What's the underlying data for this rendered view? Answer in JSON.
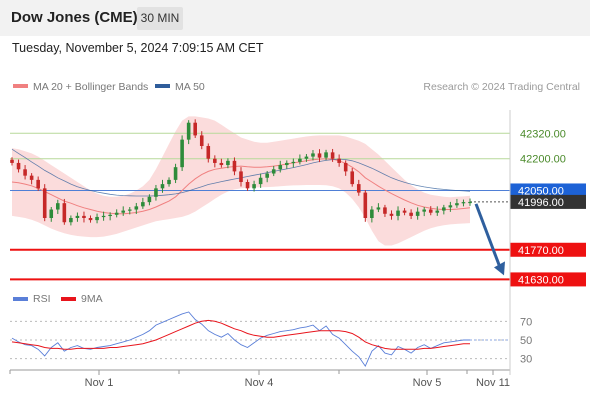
{
  "header": {
    "title": "Dow Jones (CME)",
    "interval": "30 MIN",
    "timestamp": "Tuesday, November 5, 2024 7:09:15 AM CET"
  },
  "colors": {
    "bollinger": "#f08080",
    "band_fill": "#fbdcdc",
    "ma50": "#2f5d9b",
    "candle_up": "#2e8b3a",
    "candle_down": "#c62828",
    "level_red": "#ee1111",
    "level_green": "#b7d99a",
    "current_line": "#4f7fd6",
    "current_badge": "#1d62d6",
    "last_badge": "#333333",
    "arrow": "#2f5f9e",
    "rsi": "#5a7fd8",
    "rsi_ma": "#e8141c"
  },
  "icons": {
    "arrow": "down-arrow-icon"
  },
  "chart_data": [
    {
      "type": "candlestick",
      "legend": [
        {
          "name": "MA 20 + Bollinger Bands",
          "color": "#f08080"
        },
        {
          "name": "MA 50",
          "color": "#2f5d9b"
        }
      ],
      "watermark": "Research © 2024 Trading Central",
      "ylim": [
        41580,
        42430
      ],
      "x_tick_labels": [
        "Nov 1",
        "Nov 4",
        "Nov 5",
        "Nov 11"
      ],
      "levels": [
        {
          "value": 42320.0,
          "label": "42320.00",
          "color": "#b7d99a",
          "kind": "resistance"
        },
        {
          "value": 42200.0,
          "label": "42200.00",
          "color": "#b7d99a",
          "kind": "resistance"
        },
        {
          "value": 42050.0,
          "label": "42050.00",
          "color": "#4f7fd6",
          "kind": "pivot"
        },
        {
          "value": 41770.0,
          "label": "41770.00",
          "color": "#ee1111",
          "kind": "support"
        },
        {
          "value": 41630.0,
          "label": "41630.00",
          "color": "#ee1111",
          "kind": "support"
        }
      ],
      "last_price": {
        "value": 41996.0,
        "label": "41996.00"
      },
      "close": [
        42180,
        42150,
        42120,
        42100,
        42060,
        41920,
        41960,
        41990,
        41900,
        41920,
        41930,
        41920,
        41910,
        41925,
        41930,
        41935,
        41945,
        41955,
        41960,
        41975,
        41995,
        42020,
        42060,
        42080,
        42100,
        42160,
        42290,
        42370,
        42310,
        42260,
        42200,
        42180,
        42170,
        42190,
        42140,
        42090,
        42060,
        42080,
        42110,
        42130,
        42150,
        42170,
        42180,
        42185,
        42200,
        42210,
        42225,
        42205,
        42230,
        42200,
        42180,
        42140,
        42080,
        42040,
        41920,
        41960,
        41970,
        41940,
        41930,
        41955,
        41945,
        41930,
        41950,
        41960,
        41945,
        41955,
        41970,
        41980,
        41990,
        41995,
        41996
      ],
      "ma20": [
        42090,
        42086,
        42080,
        42072,
        42060,
        42045,
        42030,
        42015,
        42000,
        41990,
        41978,
        41968,
        41960,
        41952,
        41946,
        41942,
        41940,
        41940,
        41942,
        41946,
        41952,
        41960,
        41972,
        41986,
        42000,
        42020,
        42050,
        42080,
        42105,
        42125,
        42140,
        42150,
        42155,
        42160,
        42163,
        42165,
        42162,
        42160,
        42160,
        42162,
        42165,
        42170,
        42175,
        42180,
        42185,
        42190,
        42195,
        42198,
        42200,
        42198,
        42190,
        42178,
        42160,
        42138,
        42110,
        42090,
        42070,
        42052,
        42035,
        42020,
        42005,
        41992,
        41980,
        41972,
        41966,
        41962,
        41960,
        41960,
        41962,
        41965,
        41968
      ],
      "bb_upper": [
        42250,
        42245,
        42235,
        42225,
        42210,
        42190,
        42170,
        42150,
        42130,
        42110,
        42090,
        42070,
        42050,
        42035,
        42025,
        42020,
        42020,
        42025,
        42035,
        42050,
        42070,
        42100,
        42150,
        42210,
        42270,
        42330,
        42380,
        42400,
        42400,
        42395,
        42390,
        42380,
        42360,
        42340,
        42320,
        42300,
        42290,
        42280,
        42275,
        42275,
        42280,
        42285,
        42290,
        42295,
        42300,
        42305,
        42308,
        42310,
        42310,
        42310,
        42310,
        42305,
        42295,
        42285,
        42270,
        42245,
        42220,
        42190,
        42160,
        42130,
        42100,
        42075,
        42055,
        42040,
        42030,
        42025,
        42020,
        42018,
        42020,
        42022,
        42025
      ],
      "bb_lower": [
        41930,
        41925,
        41920,
        41912,
        41900,
        41885,
        41870,
        41858,
        41848,
        41840,
        41835,
        41832,
        41830,
        41830,
        41832,
        41838,
        41845,
        41855,
        41865,
        41875,
        41885,
        41895,
        41905,
        41910,
        41915,
        41920,
        41925,
        41935,
        41950,
        41970,
        41990,
        42010,
        42030,
        42045,
        42055,
        42060,
        42063,
        42064,
        42065,
        42066,
        42068,
        42070,
        42072,
        42074,
        42075,
        42076,
        42076,
        42076,
        42075,
        42070,
        42060,
        42040,
        42010,
        41970,
        41920,
        41860,
        41810,
        41790,
        41790,
        41800,
        41815,
        41830,
        41845,
        41860,
        41872,
        41880,
        41886,
        41890,
        41892,
        41894,
        41896
      ],
      "ma50": [
        42245,
        42225,
        42205,
        42185,
        42165,
        42145,
        42128,
        42110,
        42095,
        42080,
        42068,
        42058,
        42050,
        42043,
        42037,
        42032,
        42028,
        42026,
        42025,
        42024,
        42024,
        42024,
        42025,
        42027,
        42030,
        42034,
        42040,
        42048,
        42058,
        42068,
        42078,
        42085,
        42092,
        42098,
        42104,
        42110,
        42116,
        42122,
        42128,
        42134,
        42140,
        42146,
        42152,
        42158,
        42165,
        42172,
        42180,
        42187,
        42192,
        42196,
        42198,
        42196,
        42190,
        42180,
        42168,
        42155,
        42140,
        42125,
        42110,
        42098,
        42088,
        42080,
        42073,
        42067,
        42062,
        42058,
        42055,
        42052,
        42050,
        42048,
        42046
      ]
    },
    {
      "type": "line",
      "legend": [
        {
          "name": "RSI",
          "color": "#5a7fd8"
        },
        {
          "name": "9MA",
          "color": "#e8141c"
        }
      ],
      "ylim": [
        20,
        80
      ],
      "y_tick_labels": [
        "70",
        "50",
        "30"
      ],
      "series": [
        {
          "name": "RSI",
          "values": [
            52,
            48,
            45,
            44,
            40,
            33,
            42,
            47,
            38,
            42,
            44,
            41,
            40,
            42,
            43,
            44,
            46,
            48,
            50,
            53,
            56,
            60,
            66,
            69,
            72,
            75,
            78,
            80,
            72,
            67,
            60,
            56,
            53,
            57,
            50,
            45,
            42,
            47,
            52,
            55,
            57,
            59,
            60,
            61,
            63,
            64,
            66,
            60,
            65,
            56,
            52,
            45,
            38,
            32,
            22,
            38,
            44,
            36,
            34,
            43,
            40,
            36,
            42,
            45,
            41,
            44,
            47,
            48,
            49,
            50,
            50
          ]
        },
        {
          "name": "9MA",
          "values": [
            48,
            47,
            46,
            45,
            44,
            42,
            41,
            41,
            40,
            40,
            41,
            41,
            41,
            41,
            41,
            42,
            42,
            43,
            44,
            45,
            46,
            48,
            50,
            53,
            56,
            59,
            62,
            65,
            68,
            70,
            71,
            70,
            68,
            65,
            62,
            60,
            57,
            55,
            54,
            53,
            53,
            54,
            55,
            56,
            57,
            58,
            59,
            60,
            60,
            60,
            60,
            59,
            57,
            53,
            48,
            45,
            43,
            41,
            40,
            40,
            40,
            40,
            40,
            41,
            41,
            42,
            43,
            44,
            45,
            46,
            46
          ]
        }
      ]
    }
  ]
}
